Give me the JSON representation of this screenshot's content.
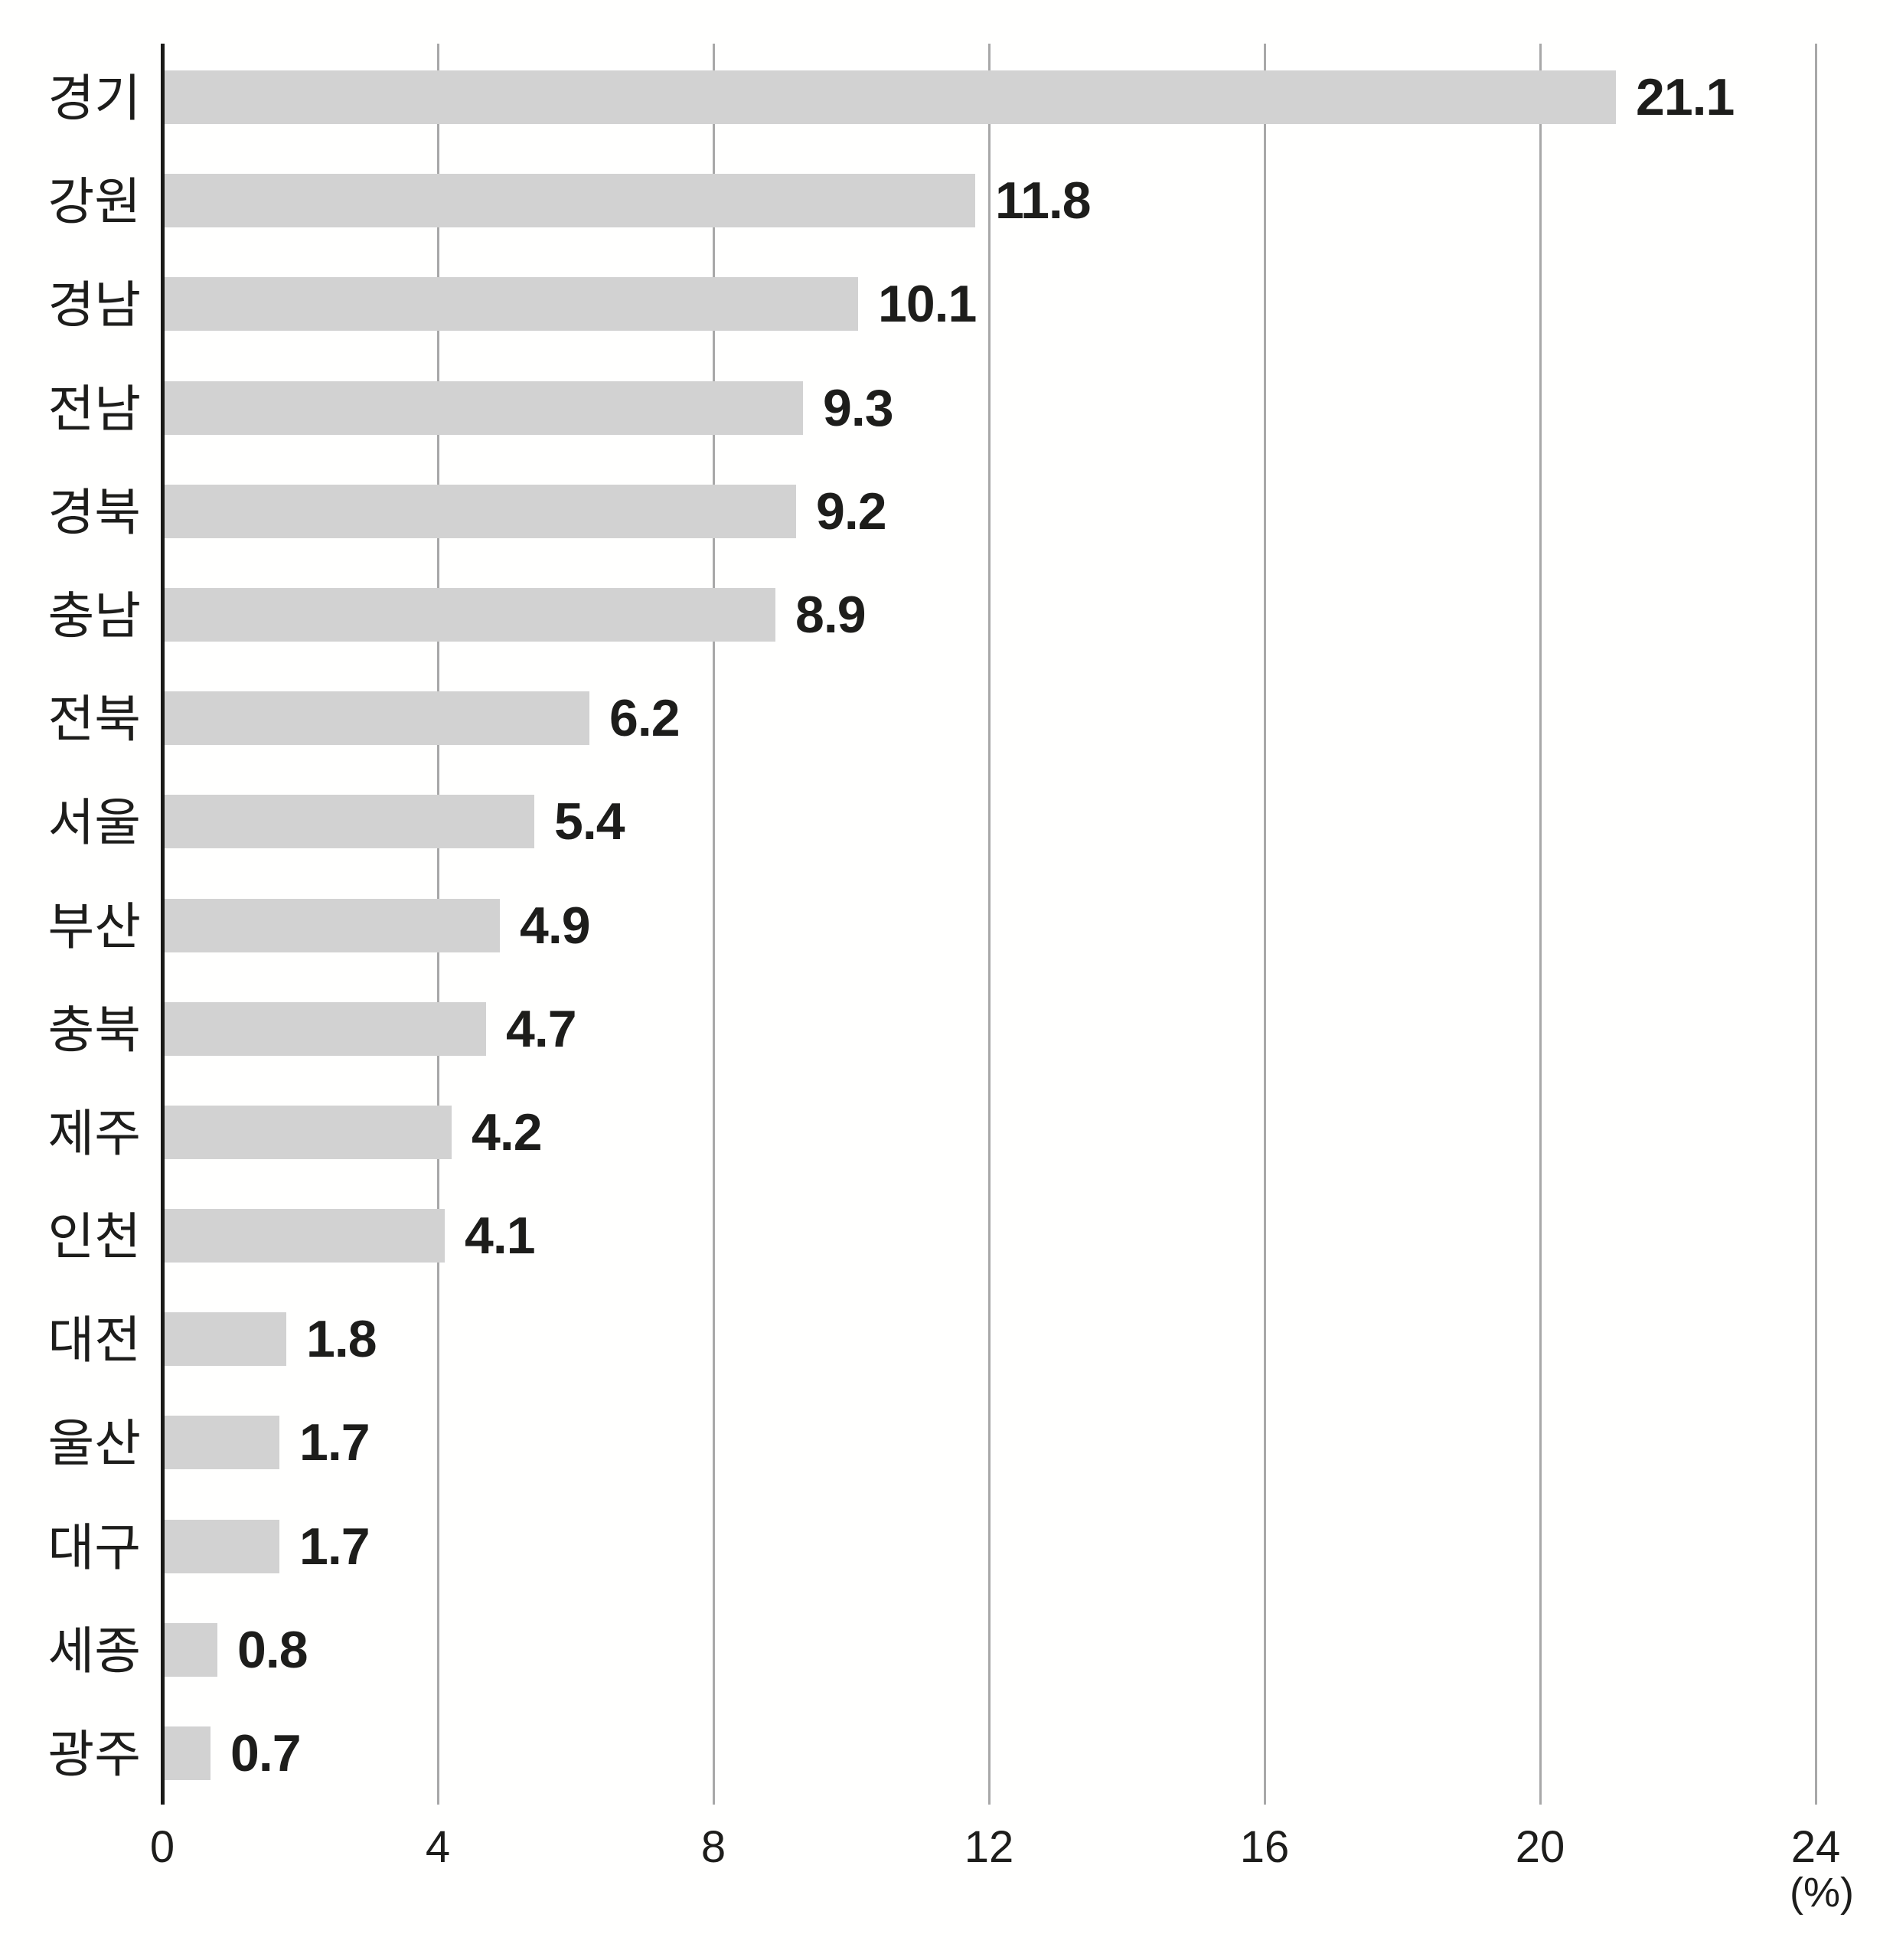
{
  "chart_data": {
    "type": "bar",
    "orientation": "horizontal",
    "title": "",
    "categories": [
      "경기",
      "강원",
      "경남",
      "전남",
      "경북",
      "충남",
      "전북",
      "서울",
      "부산",
      "충북",
      "제주",
      "인천",
      "대전",
      "울산",
      "대구",
      "세종",
      "광주"
    ],
    "values": [
      21.1,
      11.8,
      10.1,
      9.3,
      9.2,
      8.9,
      6.2,
      5.4,
      4.9,
      4.7,
      4.2,
      4.1,
      1.8,
      1.7,
      1.7,
      0.8,
      0.7
    ],
    "value_labels": [
      "21.1",
      "11.8",
      "10.1",
      "9.3",
      "9.2",
      "8.9",
      "6.2",
      "5.4",
      "4.9",
      "4.7",
      "4.2",
      "4.1",
      "1.8",
      "1.7",
      "1.7",
      "0.8",
      "0.7"
    ],
    "x_ticks": [
      "0",
      "4",
      "8",
      "12",
      "16",
      "20",
      "24"
    ],
    "x_tick_values": [
      0,
      4,
      8,
      12,
      16,
      20,
      24
    ],
    "xlim": [
      0,
      24
    ],
    "unit_label": "(%)",
    "grid": "vertical-only",
    "legend": "none",
    "colors": {
      "bar": "#d2d2d2",
      "axis_line": "#1a1a18",
      "gridline": "#a8a8a8",
      "text": "#1d1d1b",
      "background": "#fffffe"
    }
  }
}
